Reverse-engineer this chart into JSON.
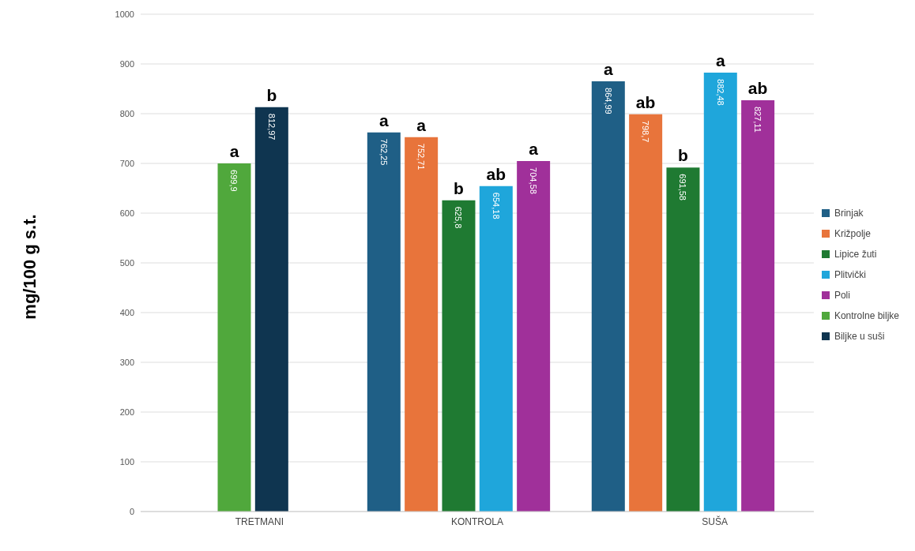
{
  "chart_data": {
    "type": "bar",
    "ylabel": "mg/100 g s.t.",
    "categories": [
      "TRETMANI",
      "KONTROLA",
      "SUŠA"
    ],
    "series": [
      {
        "name": "Brinjak",
        "color": "#1f5f86",
        "values": [
          null,
          762.25,
          864.99
        ],
        "value_labels": [
          null,
          "762,25",
          "864,99"
        ]
      },
      {
        "name": "Križpolje",
        "color": "#e8743b",
        "values": [
          null,
          752.71,
          798.7
        ],
        "value_labels": [
          null,
          "752,71",
          "798,7"
        ]
      },
      {
        "name": "Lipice žuti",
        "color": "#1f7a32",
        "values": [
          null,
          625.8,
          691.58
        ],
        "value_labels": [
          null,
          "625,8",
          "691,58"
        ]
      },
      {
        "name": "Plitvički",
        "color": "#1fa6db",
        "values": [
          null,
          654.18,
          882.48
        ],
        "value_labels": [
          null,
          "654,18",
          "882,48"
        ]
      },
      {
        "name": "Poli",
        "color": "#a0309a",
        "values": [
          null,
          704.58,
          827.11
        ],
        "value_labels": [
          null,
          "704,58",
          "827,11"
        ]
      },
      {
        "name": "Kontrolne biljke",
        "color": "#50a83c",
        "values": [
          699.9,
          null,
          null
        ],
        "value_labels": [
          "699,9",
          null,
          null
        ]
      },
      {
        "name": "Biljke u suši",
        "color": "#0f3550",
        "values": [
          812.97,
          null,
          null
        ],
        "value_labels": [
          "812,97",
          null,
          null
        ]
      }
    ],
    "ylim": [
      0,
      1000
    ],
    "yticks": [
      0,
      100,
      200,
      300,
      400,
      500,
      600,
      700,
      800,
      900,
      1000
    ],
    "grid": "y",
    "legend": "right",
    "annotations": [
      "a",
      "b",
      "a",
      "a",
      "b",
      "ab",
      "a",
      "a",
      "ab",
      "b",
      "a",
      "ab"
    ]
  }
}
